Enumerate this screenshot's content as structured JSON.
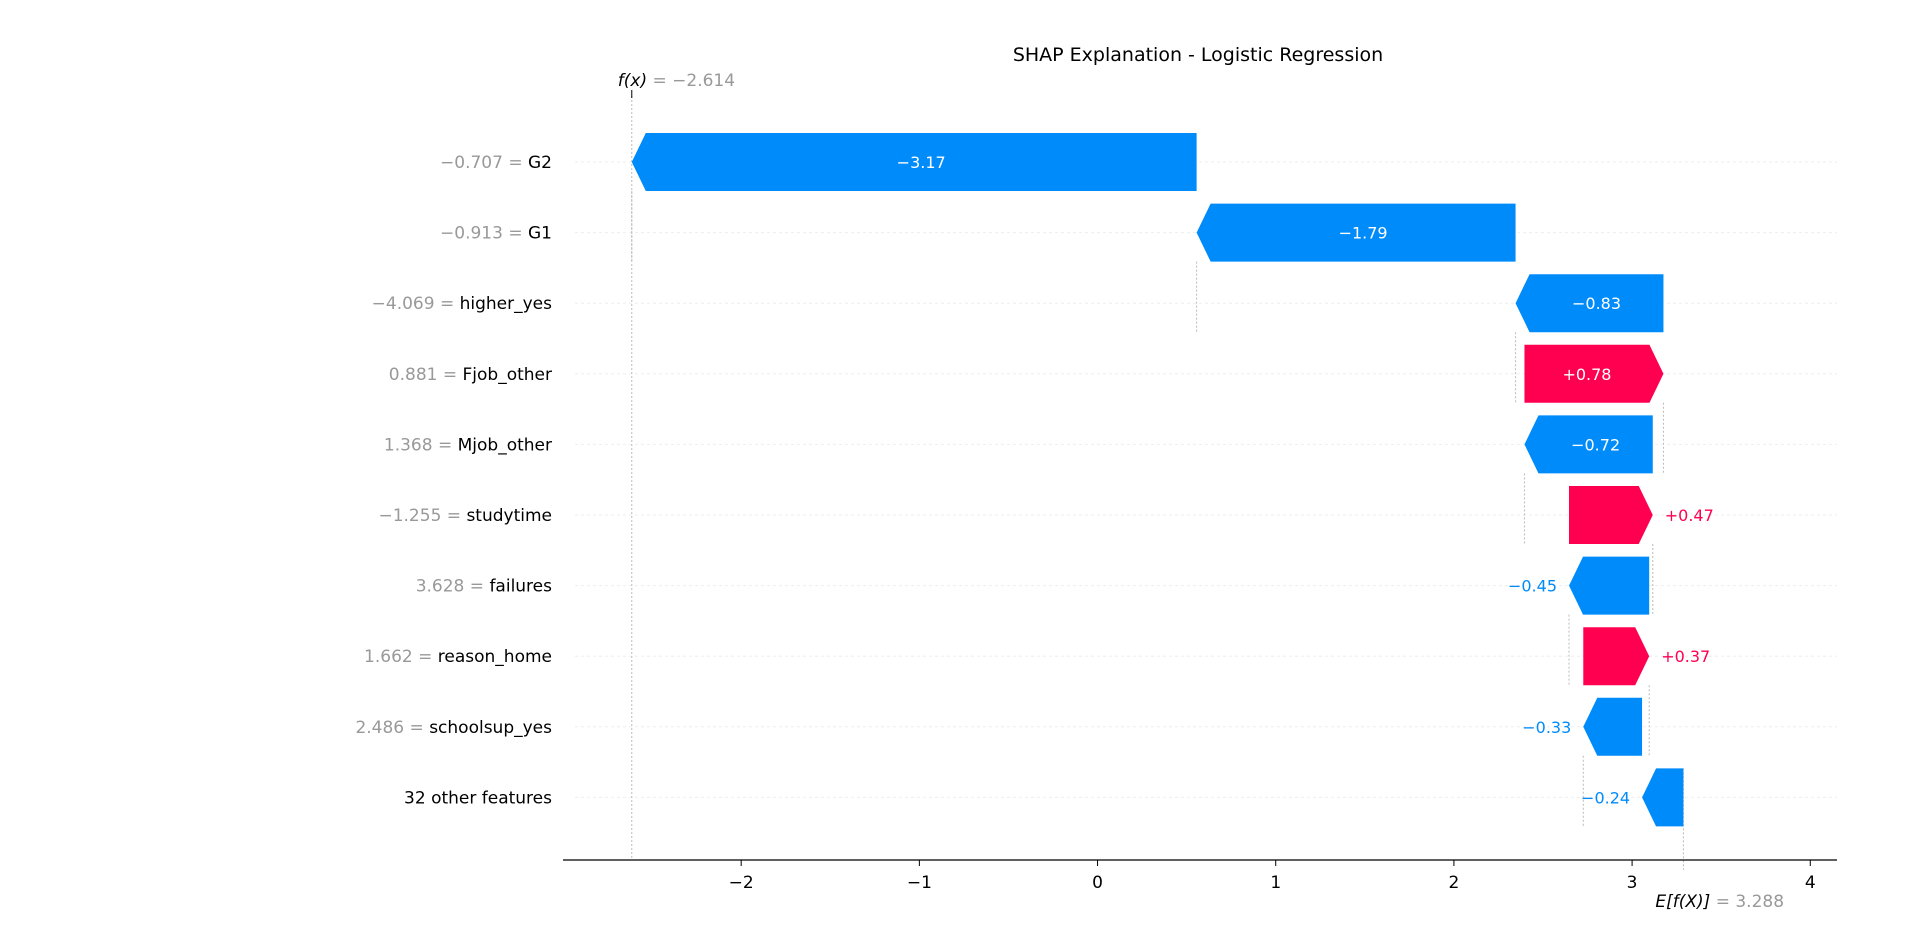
{
  "chart_data": {
    "type": "waterfall",
    "title": "SHAP Explanation - Logistic Regression",
    "fx": {
      "label": "f(x)",
      "value_text": "= −2.614",
      "value": -2.614
    },
    "expected": {
      "label": "E[f(X)]",
      "value_text": "= 3.288",
      "value": 3.288
    },
    "xlim": [
      -3.0,
      4.15
    ],
    "xticks": [
      -2,
      -1,
      0,
      1,
      2,
      3,
      4
    ],
    "xtick_labels": [
      "−2",
      "−1",
      "0",
      "1",
      "2",
      "3",
      "4"
    ],
    "features": [
      {
        "name": "G2",
        "value_text": "−0.707 =",
        "shap": -3.17,
        "label": "−3.17",
        "start": 0.556,
        "end": -2.614
      },
      {
        "name": "G1",
        "value_text": "−0.913 =",
        "shap": -1.79,
        "label": "−1.79",
        "start": 2.346,
        "end": 0.556
      },
      {
        "name": "higher_yes",
        "value_text": "−4.069 =",
        "shap": -0.83,
        "label": "−0.83",
        "start": 3.176,
        "end": 2.346
      },
      {
        "name": "Fjob_other",
        "value_text": "0.881 =",
        "shap": 0.78,
        "label": "+0.78",
        "start": 2.396,
        "end": 3.176
      },
      {
        "name": "Mjob_other",
        "value_text": "1.368 =",
        "shap": -0.72,
        "label": "−0.72",
        "start": 3.116,
        "end": 2.396
      },
      {
        "name": "studytime",
        "value_text": "−1.255 =",
        "shap": 0.47,
        "label": "+0.47",
        "start": 2.646,
        "end": 3.116
      },
      {
        "name": "failures",
        "value_text": "3.628 =",
        "shap": -0.45,
        "label": "−0.45",
        "start": 3.096,
        "end": 2.646
      },
      {
        "name": "reason_home",
        "value_text": "1.662 =",
        "shap": 0.37,
        "label": "+0.37",
        "start": 2.726,
        "end": 3.096
      },
      {
        "name": "schoolsup_yes",
        "value_text": "2.486 =",
        "shap": -0.33,
        "label": "−0.33",
        "start": 3.056,
        "end": 2.726
      },
      {
        "name": "32 other features",
        "value_text": "",
        "shap": -0.24,
        "label": "−0.24",
        "start": 3.288,
        "end": 3.056
      }
    ],
    "colors": {
      "positive": "#ff0051",
      "negative": "#008bfb",
      "value_text": "#999999",
      "grid": "#eeeeee"
    },
    "grid": true
  }
}
